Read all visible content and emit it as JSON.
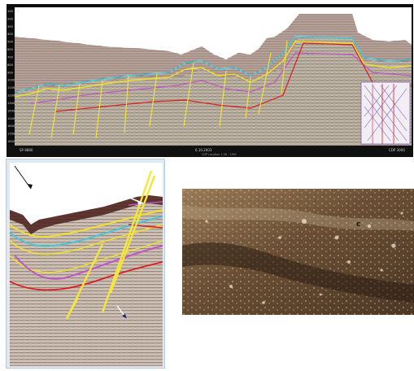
{
  "top_section": {
    "depth_ticks": [
      "100",
      "200",
      "300",
      "400",
      "500",
      "600",
      "700",
      "800",
      "900",
      "1000",
      "1100",
      "1200",
      "1300",
      "1400",
      "1500",
      "1600",
      "1700",
      "1800"
    ],
    "footer_left": "SP 8880",
    "footer_center": "6.10.2003",
    "footer_sub": "CDP Location 1.36 - 1991",
    "footer_right": "CDP 3000"
  },
  "photo_section": {
    "label": "c"
  },
  "colors": {
    "horizon_yellow": "#f1e02a",
    "horizon_cyan": "#45c6d8",
    "horizon_magenta": "#c055c8",
    "horizon_red": "#d62020",
    "fault_yellow": "#f4e63a"
  }
}
